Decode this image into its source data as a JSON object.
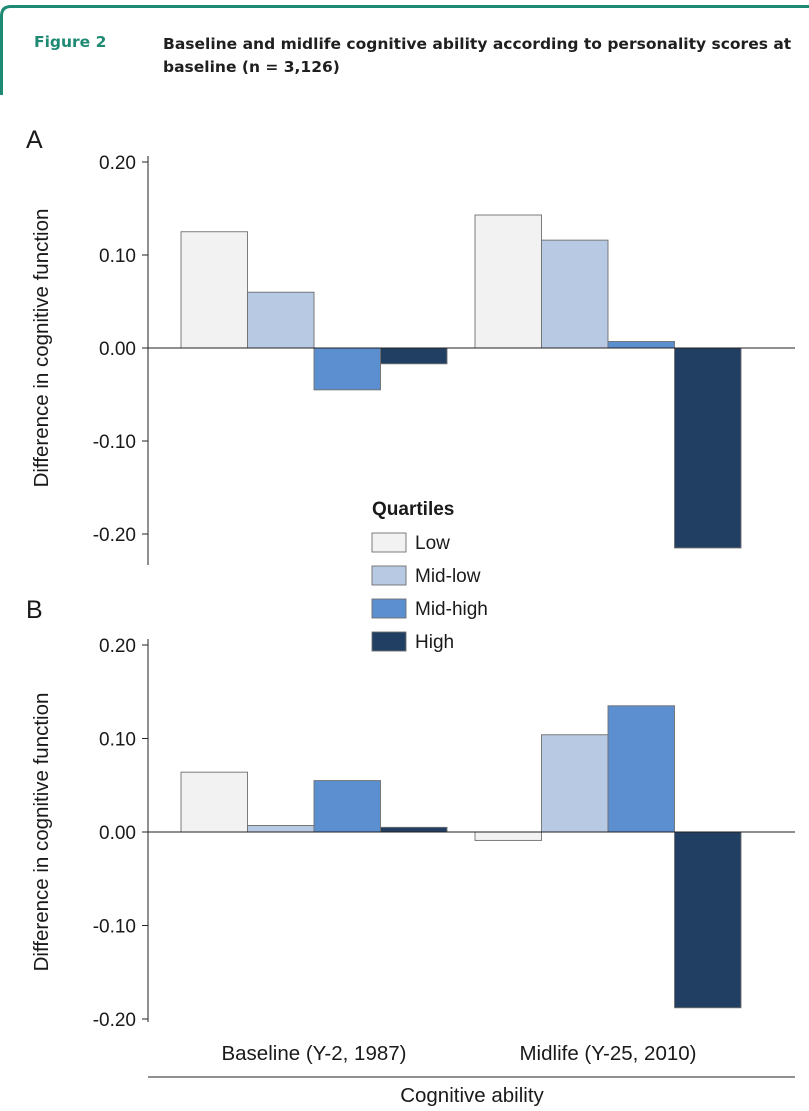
{
  "figure": {
    "label": "Figure 2",
    "title": "Baseline and midlife cognitive ability according to personality scores at baseline (n = 3,126)",
    "accent_color": "#1f8a73"
  },
  "chart_data": [
    {
      "type": "bar",
      "panel_label": "A",
      "categories": [
        "Baseline (Y-2, 1987)",
        "Midlife (Y-25, 2010)"
      ],
      "series": [
        {
          "name": "Low",
          "color": "#f2f2f2",
          "values": [
            0.125,
            0.143
          ]
        },
        {
          "name": "Mid-low",
          "color": "#b8c9e3",
          "values": [
            0.06,
            0.116
          ]
        },
        {
          "name": "Mid-high",
          "color": "#5b8fd0",
          "values": [
            -0.045,
            0.007
          ]
        },
        {
          "name": "High",
          "color": "#203f62",
          "values": [
            -0.017,
            -0.215
          ]
        }
      ],
      "ylabel": "Difference in cognitive function",
      "ylim": [
        -0.24,
        0.2
      ],
      "yticks": [
        "0.20",
        "0.10",
        "0.00",
        "-0.10",
        "-0.20"
      ],
      "legend": {
        "title": "Quartiles",
        "placement": "bottom-center"
      }
    },
    {
      "type": "bar",
      "panel_label": "B",
      "categories": [
        "Baseline (Y-2, 1987)",
        "Midlife (Y-25, 2010)"
      ],
      "series": [
        {
          "name": "Low",
          "color": "#f2f2f2",
          "values": [
            0.064,
            -0.009
          ]
        },
        {
          "name": "Mid-low",
          "color": "#b8c9e3",
          "values": [
            0.007,
            0.104
          ]
        },
        {
          "name": "Mid-high",
          "color": "#5b8fd0",
          "values": [
            0.055,
            0.135
          ]
        },
        {
          "name": "High",
          "color": "#203f62",
          "values": [
            0.005,
            -0.188
          ]
        }
      ],
      "ylabel": "Difference in cognitive function",
      "xlabel": "Cognitive ability",
      "ylim": [
        -0.21,
        0.2
      ],
      "yticks": [
        "0.20",
        "0.10",
        "0.00",
        "-0.10",
        "-0.20"
      ]
    }
  ]
}
